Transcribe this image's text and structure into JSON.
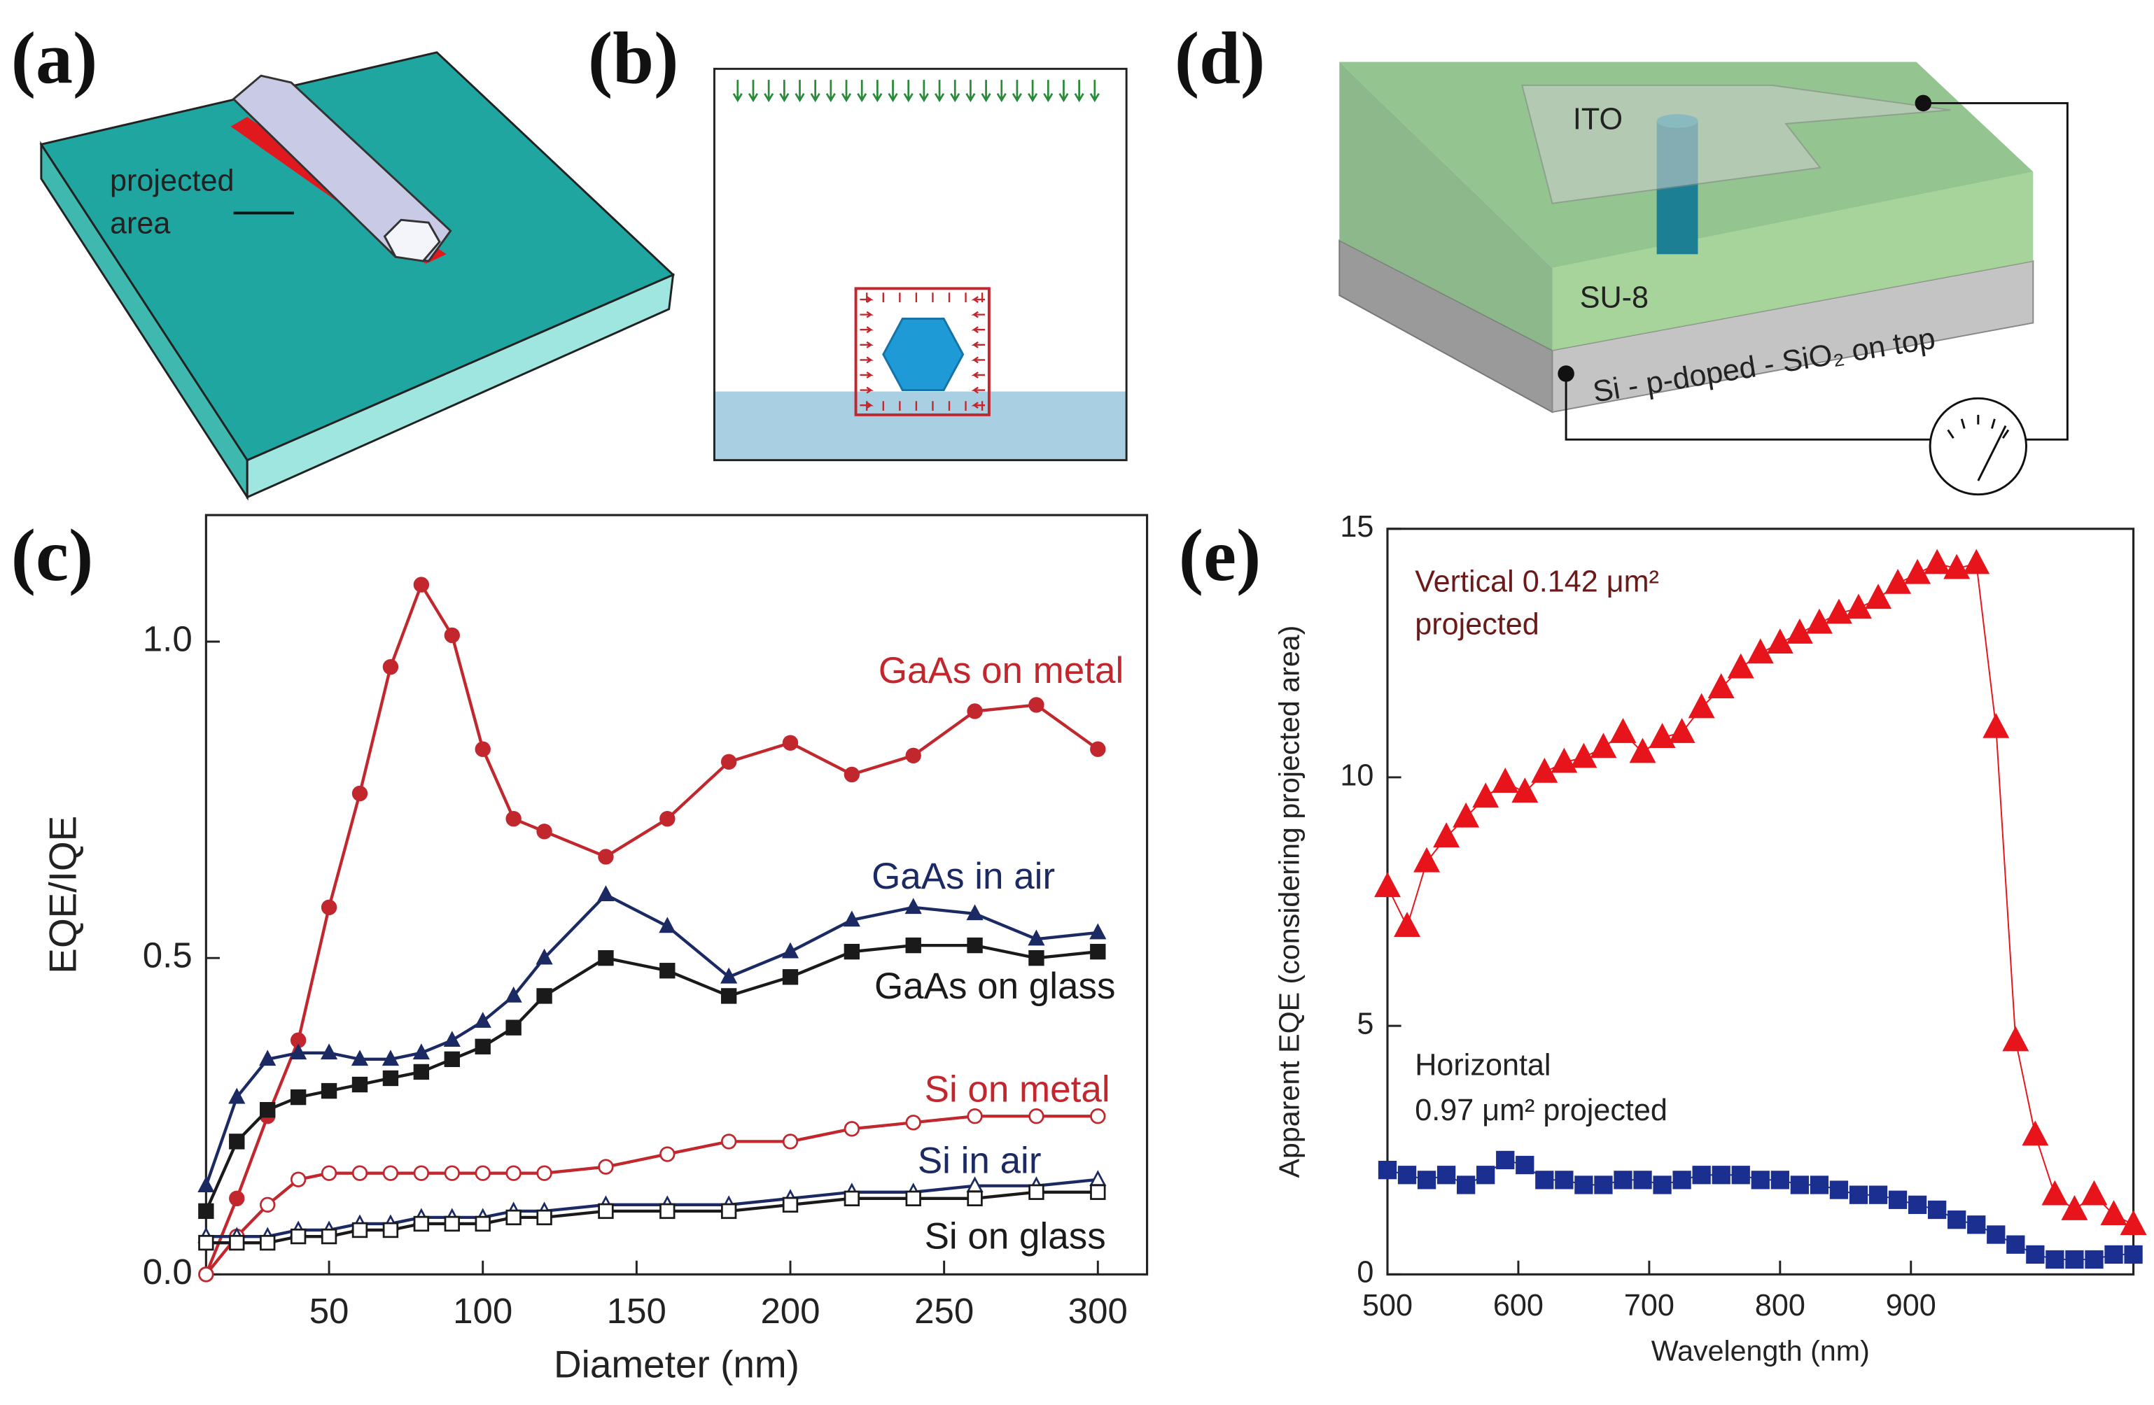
{
  "diagrams": {
    "panel_labels": [
      "(a)",
      "(b)",
      "(c)",
      "(d)",
      "(e)"
    ],
    "a_labels": [
      "projected",
      "area"
    ],
    "d_labels": [
      "ITO",
      "SU-8",
      "Si - p-doped - SiO₂ on top"
    ]
  },
  "chart_data": [
    {
      "type": "line",
      "xlabel": "Diameter (nm)",
      "ylabel": "EQE/IQE",
      "xlim": [
        10,
        316
      ],
      "ylim": [
        0,
        1.2
      ],
      "xticks": [
        50,
        100,
        150,
        200,
        250,
        300
      ],
      "yticks": [
        {
          "value": 0,
          "label": "0.0"
        },
        0.5,
        {
          "value": 1,
          "label": "1.0"
        }
      ],
      "x": [
        10,
        20,
        30,
        40,
        50,
        60,
        70,
        80,
        90,
        100,
        110,
        120,
        140,
        160,
        180,
        200,
        220,
        240,
        260,
        280,
        300
      ],
      "series": [
        {
          "name": "GaAs on metal",
          "color": "#c1272d",
          "marker": "circle",
          "filled": true,
          "values": [
            0.0,
            0.12,
            0.25,
            0.37,
            0.58,
            0.76,
            0.96,
            1.09,
            1.01,
            0.83,
            0.72,
            0.7,
            0.66,
            0.72,
            0.81,
            0.84,
            0.79,
            0.82,
            0.89,
            0.9,
            0.83
          ]
        },
        {
          "name": "GaAs in air",
          "color": "#1b2a63",
          "marker": "triangle",
          "filled": true,
          "values": [
            0.14,
            0.28,
            0.34,
            0.35,
            0.35,
            0.34,
            0.34,
            0.35,
            0.37,
            0.4,
            0.44,
            0.5,
            0.6,
            0.55,
            0.47,
            0.51,
            0.56,
            0.58,
            0.57,
            0.53,
            0.54
          ]
        },
        {
          "name": "GaAs on glass",
          "color": "#1a1a1a",
          "marker": "square",
          "filled": true,
          "values": [
            0.1,
            0.21,
            0.26,
            0.28,
            0.29,
            0.3,
            0.31,
            0.32,
            0.34,
            0.36,
            0.39,
            0.44,
            0.5,
            0.48,
            0.44,
            0.47,
            0.51,
            0.52,
            0.52,
            0.5,
            0.51
          ]
        },
        {
          "name": "Si on metal",
          "color": "#c1272d",
          "marker": "circle",
          "filled": false,
          "values": [
            0.0,
            0.06,
            0.11,
            0.15,
            0.16,
            0.16,
            0.16,
            0.16,
            0.16,
            0.16,
            0.16,
            0.16,
            0.17,
            0.19,
            0.21,
            0.21,
            0.23,
            0.24,
            0.25,
            0.25,
            0.25
          ]
        },
        {
          "name": "Si in air",
          "color": "#1b2a63",
          "marker": "triangle",
          "filled": false,
          "values": [
            0.06,
            0.06,
            0.06,
            0.07,
            0.07,
            0.08,
            0.08,
            0.09,
            0.09,
            0.09,
            0.1,
            0.1,
            0.11,
            0.11,
            0.11,
            0.12,
            0.13,
            0.13,
            0.14,
            0.14,
            0.15
          ]
        },
        {
          "name": "Si on glass",
          "color": "#1a1a1a",
          "marker": "square",
          "filled": false,
          "values": [
            0.05,
            0.05,
            0.05,
            0.06,
            0.06,
            0.07,
            0.07,
            0.08,
            0.08,
            0.08,
            0.09,
            0.09,
            0.1,
            0.1,
            0.1,
            0.11,
            0.12,
            0.12,
            0.12,
            0.13,
            0.13
          ]
        }
      ]
    },
    {
      "type": "scatter",
      "xlabel": "Wavelength (nm)",
      "ylabel": "Apparent EQE (considering projected area)",
      "xlim": [
        500,
        1070
      ],
      "ylim": [
        0,
        15
      ],
      "xticks": [
        500,
        600,
        700,
        800,
        900
      ],
      "yticks": [
        0,
        5,
        10,
        15
      ],
      "annotations": [
        "Vertical 0.142 μm²",
        "projected",
        "Horizontal",
        "0.97 μm² projected"
      ],
      "x": [
        500,
        515,
        530,
        545,
        560,
        575,
        590,
        605,
        620,
        635,
        650,
        665,
        680,
        695,
        710,
        725,
        740,
        755,
        770,
        785,
        800,
        815,
        830,
        845,
        860,
        875,
        890,
        905,
        920,
        935,
        950,
        965,
        980,
        995,
        1010,
        1025,
        1040,
        1055,
        1070
      ],
      "series": [
        {
          "color": "#e8141b",
          "marker": "triangle",
          "filled": true,
          "values": [
            7.8,
            7.0,
            8.3,
            8.8,
            9.2,
            9.6,
            9.9,
            9.7,
            10.1,
            10.3,
            10.4,
            10.6,
            10.9,
            10.5,
            10.8,
            10.9,
            11.4,
            11.8,
            12.2,
            12.5,
            12.7,
            12.9,
            13.1,
            13.3,
            13.4,
            13.6,
            13.9,
            14.1,
            14.3,
            14.2,
            14.3,
            11.0,
            4.7,
            2.8,
            1.6,
            1.3,
            1.6,
            1.2,
            1.0
          ]
        },
        {
          "color": "#1a2f8f",
          "marker": "square",
          "filled": true,
          "values": [
            2.1,
            2.0,
            1.9,
            2.0,
            1.8,
            2.0,
            2.3,
            2.2,
            1.9,
            1.9,
            1.8,
            1.8,
            1.9,
            1.9,
            1.8,
            1.9,
            2.0,
            2.0,
            2.0,
            1.9,
            1.9,
            1.8,
            1.8,
            1.7,
            1.6,
            1.6,
            1.5,
            1.4,
            1.3,
            1.1,
            1.0,
            0.8,
            0.6,
            0.4,
            0.3,
            0.3,
            0.3,
            0.4,
            0.4
          ]
        }
      ]
    }
  ]
}
